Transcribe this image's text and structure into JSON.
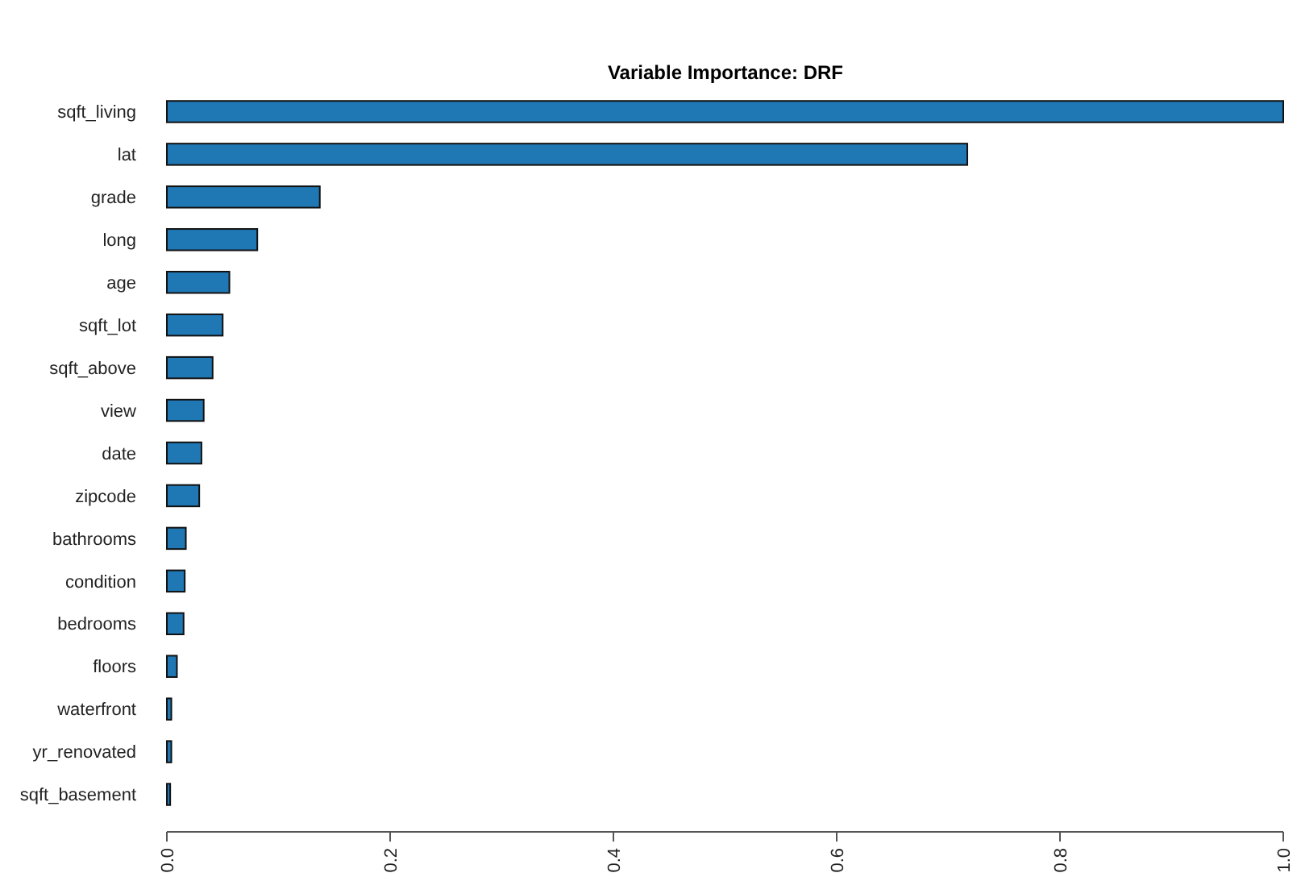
{
  "chart_data": {
    "type": "bar",
    "orientation": "horizontal",
    "title": "Variable Importance: DRF",
    "categories": [
      "sqft_living",
      "lat",
      "grade",
      "long",
      "age",
      "sqft_lot",
      "sqft_above",
      "view",
      "date",
      "zipcode",
      "bathrooms",
      "condition",
      "bedrooms",
      "floors",
      "waterfront",
      "yr_renovated",
      "sqft_basement"
    ],
    "values": [
      1.0,
      0.717,
      0.137,
      0.081,
      0.056,
      0.05,
      0.041,
      0.033,
      0.031,
      0.029,
      0.017,
      0.016,
      0.015,
      0.009,
      0.004,
      0.004,
      0.003
    ],
    "color": "#1f77b4",
    "xlim": [
      0,
      1
    ],
    "xticks": [
      {
        "value": 0,
        "label": "0.0"
      },
      {
        "value": 0.2,
        "label": "0.2"
      },
      {
        "value": 0.4,
        "label": "0.4"
      },
      {
        "value": 0.6,
        "label": "0.6"
      },
      {
        "value": 0.8,
        "label": "0.8"
      },
      {
        "value": 1,
        "label": "1.0"
      }
    ],
    "grid": false
  }
}
